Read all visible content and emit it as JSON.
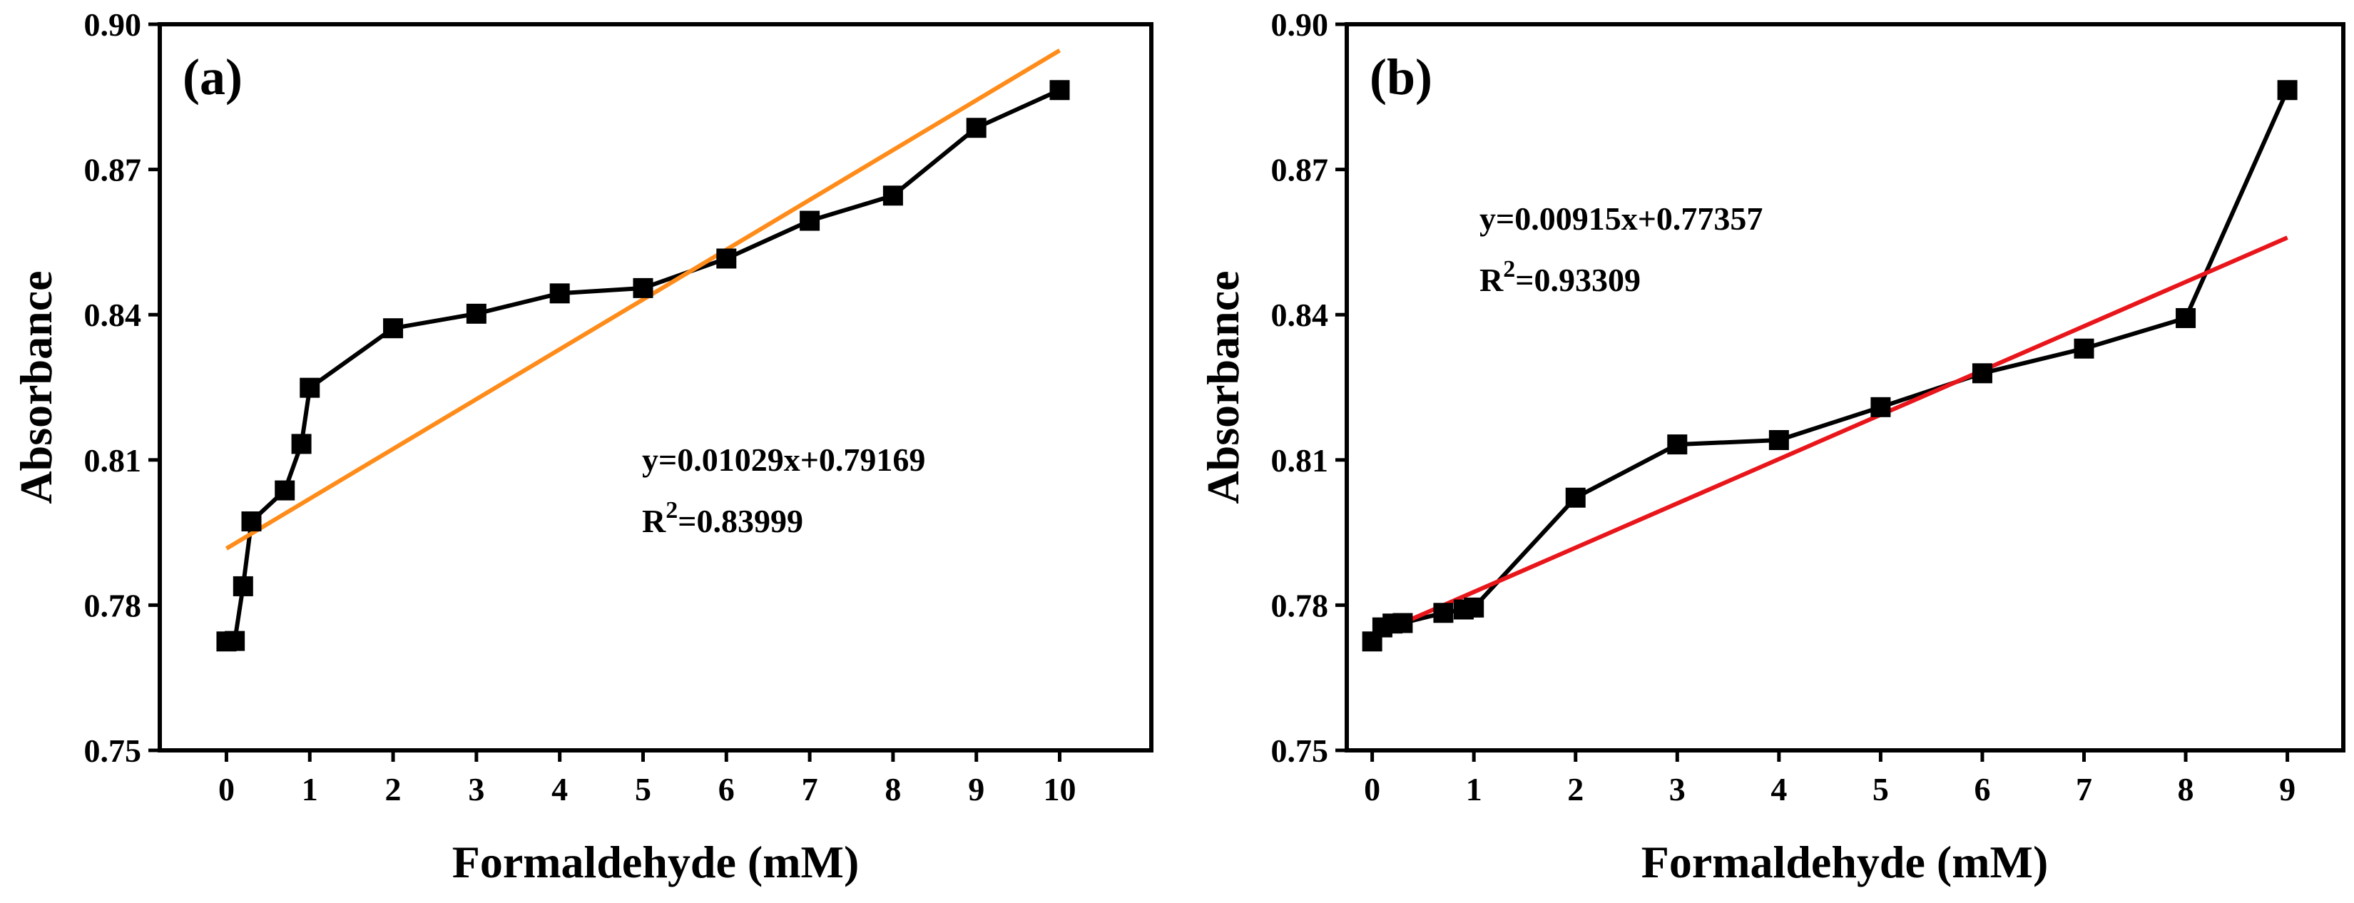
{
  "chart_data": [
    {
      "type": "line",
      "panel_label": "(a)",
      "xlabel": "Formaldehyde (mM)",
      "ylabel": "Absorbance",
      "xlim": [
        -0.8,
        11.1
      ],
      "ylim": [
        0.75,
        0.9
      ],
      "xticks": [
        0,
        1,
        2,
        3,
        4,
        5,
        6,
        7,
        8,
        9,
        10
      ],
      "yticks": [
        0.75,
        0.78,
        0.81,
        0.84,
        0.87,
        0.9
      ],
      "ytick_labels": [
        "0.75",
        "0.78",
        "0.81",
        "0.84",
        "0.87",
        "0.90"
      ],
      "series": [
        {
          "x": [
            0,
            0.1,
            0.2,
            0.3,
            0.7,
            0.9,
            1,
            2,
            3,
            4,
            5,
            6,
            7,
            8,
            9,
            10
          ],
          "y": [
            0.7725,
            0.7726,
            0.7839,
            0.7973,
            0.8037,
            0.8133,
            0.8249,
            0.8372,
            0.8402,
            0.8444,
            0.8455,
            0.8516,
            0.8594,
            0.8646,
            0.8786,
            0.8864
          ],
          "color": "#000000",
          "marker": "square"
        }
      ],
      "fit": {
        "slope": 0.01029,
        "intercept": 0.79169,
        "x_range": [
          0,
          10
        ],
        "color": "#FF8C1A"
      },
      "equation": "y=0.01029x+0.79169",
      "r2_prefix": "R",
      "r2_sup": "2",
      "r2_value": "=0.83999",
      "grid": false
    },
    {
      "type": "line",
      "panel_label": "(b)",
      "xlabel": "Formaldehyde (mM)",
      "ylabel": "Absorbance",
      "xlim": [
        -0.25,
        9.55
      ],
      "ylim": [
        0.75,
        0.9
      ],
      "xticks": [
        0,
        1,
        2,
        3,
        4,
        5,
        6,
        7,
        8,
        9
      ],
      "yticks": [
        0.75,
        0.78,
        0.81,
        0.84,
        0.87,
        0.9
      ],
      "ytick_labels": [
        "0.75",
        "0.78",
        "0.81",
        "0.84",
        "0.87",
        "0.90"
      ],
      "series": [
        {
          "x": [
            0,
            0.1,
            0.2,
            0.3,
            0.7,
            0.9,
            1,
            2,
            3,
            4,
            5,
            6,
            7,
            8,
            9
          ],
          "y": [
            0.7725,
            0.7754,
            0.7762,
            0.7763,
            0.7784,
            0.7791,
            0.7795,
            0.8022,
            0.8132,
            0.8141,
            0.8209,
            0.8279,
            0.833,
            0.8393,
            0.8864
          ],
          "color": "#000000",
          "marker": "square"
        }
      ],
      "fit": {
        "slope": 0.00915,
        "intercept": 0.77357,
        "x_range": [
          0,
          9
        ],
        "color": "#E8161B"
      },
      "equation": "y=0.00915x+0.77357",
      "r2_prefix": "R",
      "r2_sup": "2",
      "r2_value": "=0.93309",
      "grid": false
    }
  ]
}
